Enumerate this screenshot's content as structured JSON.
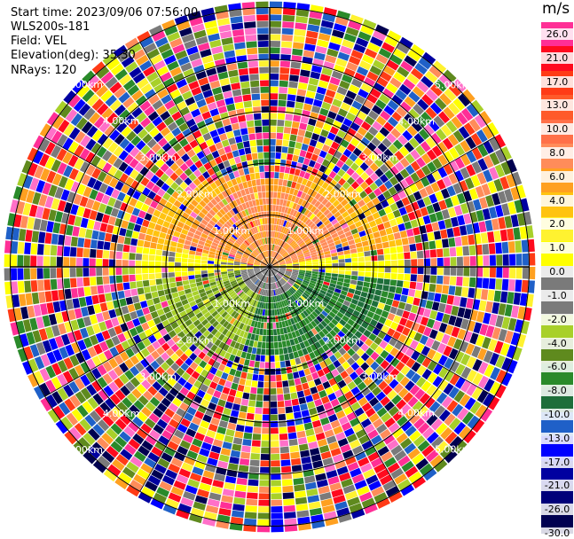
{
  "info": {
    "start_time": "Start time: 2023/09/06 07:56:00",
    "instrument": "WLS200s-181",
    "field": "Field: VEL",
    "elevation": "Elevation(deg): 35.30",
    "nrays": "NRays: 120"
  },
  "colorbar": {
    "unit": "m/s",
    "ticks": [
      "26.0",
      "21.0",
      "17.0",
      "13.0",
      "10.0",
      "8.0",
      "6.0",
      "4.0",
      "2.0",
      "1.0",
      "0.0",
      "-1.0",
      "-2.0",
      "-4.0",
      "-6.0",
      "-8.0",
      "-10.0",
      "-13.0",
      "-17.0",
      "-21.0",
      "-26.0",
      "-30.0"
    ],
    "colors": [
      "#ff2f96",
      "#ff0a1e",
      "#ff3b16",
      "#ff5a2a",
      "#ff7048",
      "#ff8c5a",
      "#ffa020",
      "#ffc310",
      "#fff230",
      "#ffff00",
      "#7a7a7a",
      "#7a7a7a",
      "#a8d02a",
      "#5f8a1e",
      "#2a8a2a",
      "#1e6e3a",
      "#1f60c8",
      "#0000ff",
      "#0000a0",
      "#00007a",
      "#000050"
    ],
    "label_bg": [
      "#ff2f96",
      "#ff0a1e",
      "#ff3b16",
      "#ff5a2a",
      "#ff7048",
      "#ff8c5a",
      "#ffa020",
      "#ffc310",
      "#fff230",
      "#ffff00",
      "#7a7a7a",
      "#7a7a7a",
      "#a8d02a",
      "#5f8a1e",
      "#2a8a2a",
      "#1e6e3a",
      "#1f60c8",
      "#0000ff",
      "#0000a0",
      "#00007a",
      "#000050",
      "#000050"
    ]
  },
  "range_labels": {
    "r1": "1.00km",
    "r2": "2.00km",
    "r3": "3.00km",
    "r4": "4.00km",
    "r5": "5.00km"
  }
}
